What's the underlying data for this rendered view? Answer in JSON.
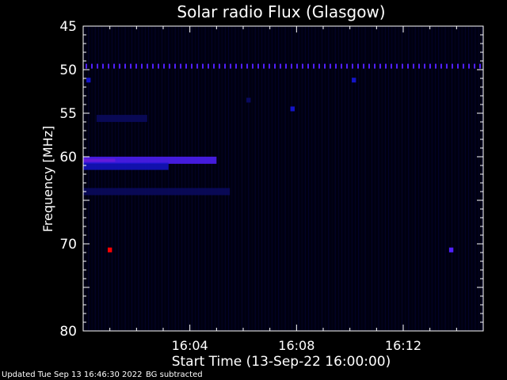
{
  "chart_data": {
    "type": "heatmap",
    "title": "Solar radio Flux (Glasgow)",
    "xlabel": "Start Time (13-Sep-22 16:00:00)",
    "ylabel": "Frequency [MHz]",
    "xlim_minutes": [
      0,
      15
    ],
    "ylim_mhz": [
      45,
      80
    ],
    "y_inverted": true,
    "x_ticks": [
      {
        "minutes": 4,
        "label": "16:04"
      },
      {
        "minutes": 8,
        "label": "16:08"
      },
      {
        "minutes": 12,
        "label": "16:12"
      }
    ],
    "y_ticks": [
      {
        "value": 45,
        "label": "45"
      },
      {
        "value": 50,
        "label": "50"
      },
      {
        "value": 55,
        "label": "55"
      },
      {
        "value": 60,
        "label": "60"
      },
      {
        "value": 70,
        "label": "70"
      },
      {
        "value": 80,
        "label": "80"
      }
    ],
    "colormap": [
      "#000010",
      "#0a0a60",
      "#1414c8",
      "#5020ff",
      "#ff0000"
    ],
    "features": [
      {
        "name": "persistent-band",
        "freq_mhz": 49.6,
        "t_start_min": 0,
        "t_end_min": 15,
        "intensity": 0.55,
        "dotted": true
      },
      {
        "name": "strong-emission",
        "freq_mhz": 60.4,
        "t_start_min": 0,
        "t_end_min": 1.2,
        "intensity": 1.0
      },
      {
        "name": "emission-band",
        "freq_mhz": 60.4,
        "t_start_min": 0,
        "t_end_min": 5.0,
        "intensity": 0.75
      },
      {
        "name": "emission-band-lower",
        "freq_mhz": 61.1,
        "t_start_min": 0,
        "t_end_min": 3.2,
        "intensity": 0.5
      },
      {
        "name": "faint-band",
        "freq_mhz": 64.0,
        "t_start_min": 0,
        "t_end_min": 5.5,
        "intensity": 0.25
      },
      {
        "name": "faint-band-55",
        "freq_mhz": 55.6,
        "t_start_min": 0.5,
        "t_end_min": 2.4,
        "intensity": 0.3
      },
      {
        "name": "spot",
        "freq_mhz": 70.7,
        "t_start_min": 0.95,
        "t_end_min": 1.05,
        "intensity": 0.9
      },
      {
        "name": "spot",
        "freq_mhz": 70.7,
        "t_start_min": 13.75,
        "t_end_min": 13.85,
        "intensity": 0.85
      },
      {
        "name": "spot",
        "freq_mhz": 54.5,
        "t_start_min": 7.8,
        "t_end_min": 7.9,
        "intensity": 0.6
      },
      {
        "name": "spot",
        "freq_mhz": 51.2,
        "t_start_min": 10.1,
        "t_end_min": 10.2,
        "intensity": 0.4
      },
      {
        "name": "spot",
        "freq_mhz": 51.2,
        "t_start_min": 0.15,
        "t_end_min": 0.25,
        "intensity": 0.4
      },
      {
        "name": "spot",
        "freq_mhz": 53.5,
        "t_start_min": 6.15,
        "t_end_min": 6.25,
        "intensity": 0.35
      }
    ]
  },
  "footer": {
    "updated": "Updated Tue Sep 13 16:46:30 2022",
    "bg_note": "BG subtracted"
  }
}
